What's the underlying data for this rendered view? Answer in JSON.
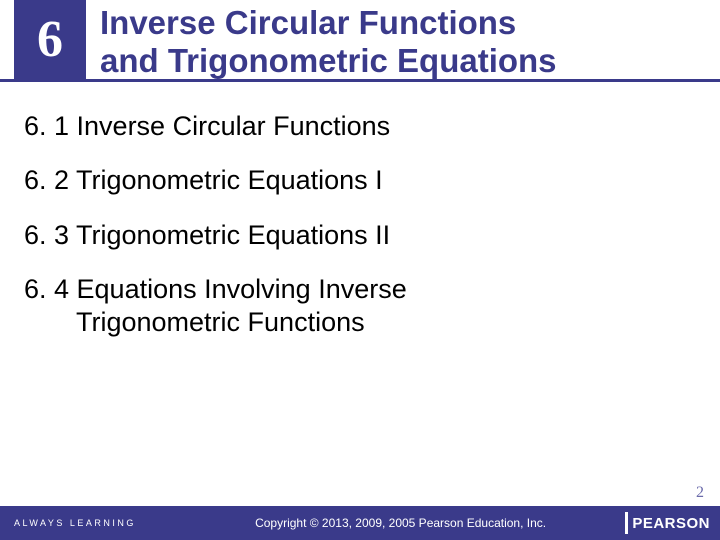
{
  "header": {
    "chapter_number": "6",
    "title_line1": "Inverse Circular Functions",
    "title_line2": "and Trigonometric Equations"
  },
  "sections": [
    {
      "label": "6. 1 Inverse Circular Functions",
      "cont": ""
    },
    {
      "label": "6. 2 Trigonometric Equations I",
      "cont": ""
    },
    {
      "label": "6. 3 Trigonometric Equations II",
      "cont": ""
    },
    {
      "label": "6. 4 Equations Involving Inverse",
      "cont": "Trigonometric Functions"
    }
  ],
  "footer": {
    "tagline": "ALWAYS LEARNING",
    "copyright": "Copyright © 2013, 2009, 2005 Pearson Education, Inc.",
    "brand": "PEARSON"
  },
  "page_number": "2",
  "colors": {
    "brand_blue": "#3a3a8a",
    "page_num_color": "#6a6aaa",
    "white": "#ffffff",
    "black": "#000000"
  },
  "typography": {
    "chapter_num_size": 52,
    "title_size": 33,
    "section_size": 27,
    "copyright_size": 12,
    "tagline_size": 9
  }
}
